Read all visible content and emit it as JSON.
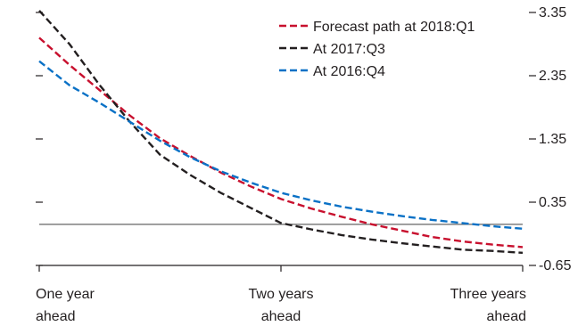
{
  "chart_data": {
    "type": "line",
    "title": "",
    "xlabel": "",
    "ylabel": "",
    "categories": [
      "One year ahead",
      "Two years ahead",
      "Three years ahead"
    ],
    "x_tick_labels": [
      {
        "lines": [
          "One year",
          "ahead"
        ],
        "align": "start"
      },
      {
        "lines": [
          "Two years",
          "ahead"
        ],
        "align": "middle"
      },
      {
        "lines": [
          "Three years",
          "ahead"
        ],
        "align": "end"
      }
    ],
    "x_range": [
      0,
      2
    ],
    "ylim": [
      -0.65,
      3.35
    ],
    "y_ticks": [
      3.35,
      2.35,
      1.35,
      0.35,
      -0.65
    ],
    "y_tick_labels": [
      "3.35",
      "2.35",
      "1.35",
      "0.35",
      "-0.65"
    ],
    "reference_line": 0.0,
    "grid": false,
    "legend_position": "top-right",
    "series": [
      {
        "name": "Forecast path at 2018:Q1",
        "color": "#c8102e",
        "x": [
          0,
          0.125,
          0.25,
          0.375,
          0.5,
          0.625,
          0.75,
          0.875,
          1.0,
          1.125,
          1.25,
          1.375,
          1.5,
          1.625,
          1.75,
          1.875,
          2.0
        ],
        "values": [
          2.95,
          2.52,
          2.12,
          1.72,
          1.36,
          1.08,
          0.82,
          0.6,
          0.4,
          0.25,
          0.12,
          0.0,
          -0.1,
          -0.2,
          -0.27,
          -0.32,
          -0.36
        ]
      },
      {
        "name": "At 2017:Q3",
        "color": "#231f20",
        "x": [
          0,
          0.125,
          0.25,
          0.375,
          0.5,
          0.625,
          0.75,
          0.875,
          1.0,
          1.125,
          1.25,
          1.375,
          1.5,
          1.625,
          1.75,
          1.875,
          2.0
        ],
        "values": [
          3.38,
          2.85,
          2.2,
          1.62,
          1.1,
          0.78,
          0.5,
          0.26,
          0.02,
          -0.08,
          -0.17,
          -0.24,
          -0.3,
          -0.35,
          -0.4,
          -0.42,
          -0.45
        ]
      },
      {
        "name": "At 2016:Q4",
        "color": "#0a71c6",
        "x": [
          0,
          0.125,
          0.25,
          0.375,
          0.5,
          0.625,
          0.75,
          0.875,
          1.0,
          1.125,
          1.25,
          1.375,
          1.5,
          1.625,
          1.75,
          1.875,
          2.0
        ],
        "values": [
          2.58,
          2.2,
          1.92,
          1.62,
          1.32,
          1.06,
          0.84,
          0.66,
          0.5,
          0.38,
          0.28,
          0.2,
          0.13,
          0.07,
          0.02,
          -0.03,
          -0.07
        ]
      }
    ]
  }
}
